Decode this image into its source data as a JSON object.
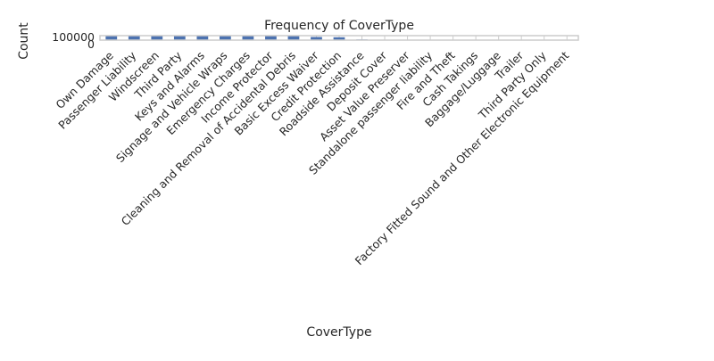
{
  "chart_data": {
    "type": "bar",
    "title": "Frequency of CoverType",
    "xlabel": "CoverType",
    "ylabel": "Count",
    "ylim": [
      0,
      100000
    ],
    "yticks": [
      "0",
      "100000"
    ],
    "categories": [
      "Own Damage",
      "Passenger Liability",
      "Windscreen",
      "Third Party",
      "Keys and Alarms",
      "Signage and Vehicle Wraps",
      "Emergency Charges",
      "Income Protector",
      "Cleaning and Removal of Accidental Debris",
      "Basic Excess Waiver",
      "Credit Protection",
      "Roadside Assistance",
      "Deposit Cover",
      "Asset Value Preserver",
      "Standalone passenger liability",
      "Fire and Theft",
      "Cash Takings",
      "Baggage/Luggage",
      "Trailer",
      "Third Party Only",
      "Factory Fitted Sound and Other Electronic Equipment"
    ],
    "values": [
      104000,
      104000,
      104000,
      104000,
      104000,
      104000,
      104000,
      104000,
      104000,
      70000,
      64000,
      15000,
      5000,
      3000,
      1000,
      500,
      200,
      200,
      100,
      100,
      50
    ],
    "grid": true,
    "colors": {
      "bar": "#4c72b0",
      "grid": "#cccccc",
      "background": "#ffffff"
    }
  }
}
